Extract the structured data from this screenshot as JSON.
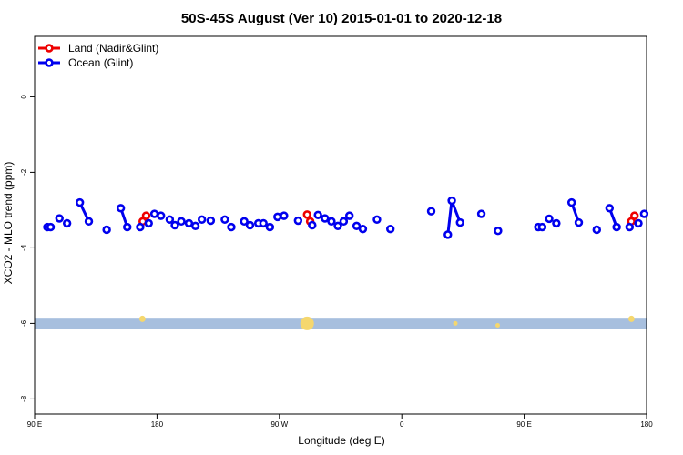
{
  "chart_data": {
    "type": "scatter",
    "title": "50S-45S August (Ver 10)   2015-01-01 to 2020-12-18",
    "xlabel": "Longitude (deg E)",
    "ylabel": "XCO2 - MLO trend (ppm)",
    "xlim": [
      0,
      360
    ],
    "ylim": [
      -8.4,
      1.6
    ],
    "x_ticks": [
      {
        "value": 0,
        "label": "90 E"
      },
      {
        "value": 72,
        "label": "180"
      },
      {
        "value": 144,
        "label": "90 W"
      },
      {
        "value": 216,
        "label": "0"
      },
      {
        "value": 288,
        "label": "90 E"
      },
      {
        "value": 360,
        "label": "180"
      }
    ],
    "y_ticks": [
      {
        "value": 0,
        "label": "0"
      },
      {
        "value": -2,
        "label": "-2"
      },
      {
        "value": -4,
        "label": "-4"
      },
      {
        "value": -6,
        "label": "-6"
      },
      {
        "value": -8,
        "label": "-8"
      }
    ],
    "grid": false,
    "legend_position": "top-left",
    "series": [
      {
        "name": "Land (Nadir&Glint)",
        "color": "#ee0000",
        "points": [
          [
            63.6,
            -3.3
          ],
          [
            65.6,
            -3.15
          ],
          [
            160.3,
            -3.12
          ],
          [
            162.1,
            -3.3
          ],
          [
            351.0,
            -3.3
          ],
          [
            352.9,
            -3.15
          ]
        ],
        "segments": [
          [
            [
              63.6,
              -3.3
            ],
            [
              65.6,
              -3.15
            ]
          ],
          [
            [
              160.3,
              -3.12
            ],
            [
              162.1,
              -3.3
            ]
          ],
          [
            [
              351.0,
              -3.3
            ],
            [
              352.9,
              -3.15
            ]
          ]
        ]
      },
      {
        "name": "Ocean (Glint)",
        "color": "#0000ee",
        "points": [
          [
            7.5,
            -3.45
          ],
          [
            9.4,
            -3.45
          ],
          [
            14.6,
            -3.22
          ],
          [
            19.1,
            -3.35
          ],
          [
            26.6,
            -2.8
          ],
          [
            31.9,
            -3.3
          ],
          [
            42.4,
            -3.52
          ],
          [
            50.7,
            -2.95
          ],
          [
            54.5,
            -3.45
          ],
          [
            62.1,
            -3.45
          ],
          [
            67.1,
            -3.35
          ],
          [
            70.5,
            -3.1
          ],
          [
            74.3,
            -3.15
          ],
          [
            79.5,
            -3.25
          ],
          [
            82.5,
            -3.4
          ],
          [
            86.3,
            -3.3
          ],
          [
            90.8,
            -3.35
          ],
          [
            94.6,
            -3.42
          ],
          [
            98.4,
            -3.25
          ],
          [
            103.6,
            -3.28
          ],
          [
            111.9,
            -3.25
          ],
          [
            115.7,
            -3.45
          ],
          [
            123.3,
            -3.3
          ],
          [
            126.7,
            -3.4
          ],
          [
            131.6,
            -3.35
          ],
          [
            134.6,
            -3.35
          ],
          [
            138.4,
            -3.45
          ],
          [
            142.9,
            -3.18
          ],
          [
            146.7,
            -3.15
          ],
          [
            155.0,
            -3.28
          ],
          [
            163.3,
            -3.4
          ],
          [
            166.7,
            -3.13
          ],
          [
            170.8,
            -3.22
          ],
          [
            174.6,
            -3.3
          ],
          [
            178.4,
            -3.42
          ],
          [
            181.8,
            -3.3
          ],
          [
            185.2,
            -3.15
          ],
          [
            189.4,
            -3.42
          ],
          [
            193.1,
            -3.5
          ],
          [
            201.4,
            -3.25
          ],
          [
            209.3,
            -3.5
          ],
          [
            233.3,
            -3.03
          ],
          [
            243.1,
            -3.65
          ],
          [
            245.4,
            -2.75
          ],
          [
            250.3,
            -3.33
          ],
          [
            262.8,
            -3.1
          ],
          [
            272.6,
            -3.55
          ],
          [
            296.3,
            -3.45
          ],
          [
            298.6,
            -3.45
          ],
          [
            302.7,
            -3.23
          ],
          [
            306.9,
            -3.35
          ],
          [
            315.9,
            -2.8
          ],
          [
            320.1,
            -3.33
          ],
          [
            330.7,
            -3.52
          ],
          [
            338.2,
            -2.95
          ],
          [
            342.4,
            -3.45
          ],
          [
            350.0,
            -3.45
          ],
          [
            355.2,
            -3.35
          ],
          [
            358.6,
            -3.1
          ]
        ],
        "segments": [
          [
            [
              7.5,
              -3.45
            ],
            [
              9.4,
              -3.45
            ]
          ],
          [
            [
              26.6,
              -2.8
            ],
            [
              31.9,
              -3.3
            ]
          ],
          [
            [
              50.7,
              -2.95
            ],
            [
              54.5,
              -3.45
            ]
          ],
          [
            [
              62.1,
              -3.45
            ],
            [
              65.6,
              -3.15
            ]
          ],
          [
            [
              243.1,
              -3.65
            ],
            [
              245.4,
              -2.75
            ],
            [
              250.3,
              -3.33
            ]
          ],
          [
            [
              296.3,
              -3.45
            ],
            [
              298.6,
              -3.45
            ]
          ],
          [
            [
              315.9,
              -2.8
            ],
            [
              320.1,
              -3.33
            ]
          ],
          [
            [
              338.2,
              -2.95
            ],
            [
              342.4,
              -3.45
            ]
          ],
          [
            [
              350.0,
              -3.45
            ],
            [
              352.9,
              -3.15
            ]
          ]
        ]
      }
    ],
    "band": {
      "y": [
        -6.15,
        -5.85
      ],
      "color": "#a7bfde"
    },
    "band_markers": {
      "color": "#f5d76e",
      "points": [
        [
          63.4,
          -5.88,
          1
        ],
        [
          160.3,
          -6.0,
          3
        ],
        [
          247.5,
          -6.0,
          0.5
        ],
        [
          272.4,
          -6.05,
          0.5
        ],
        [
          351.1,
          -5.88,
          1
        ]
      ]
    }
  }
}
